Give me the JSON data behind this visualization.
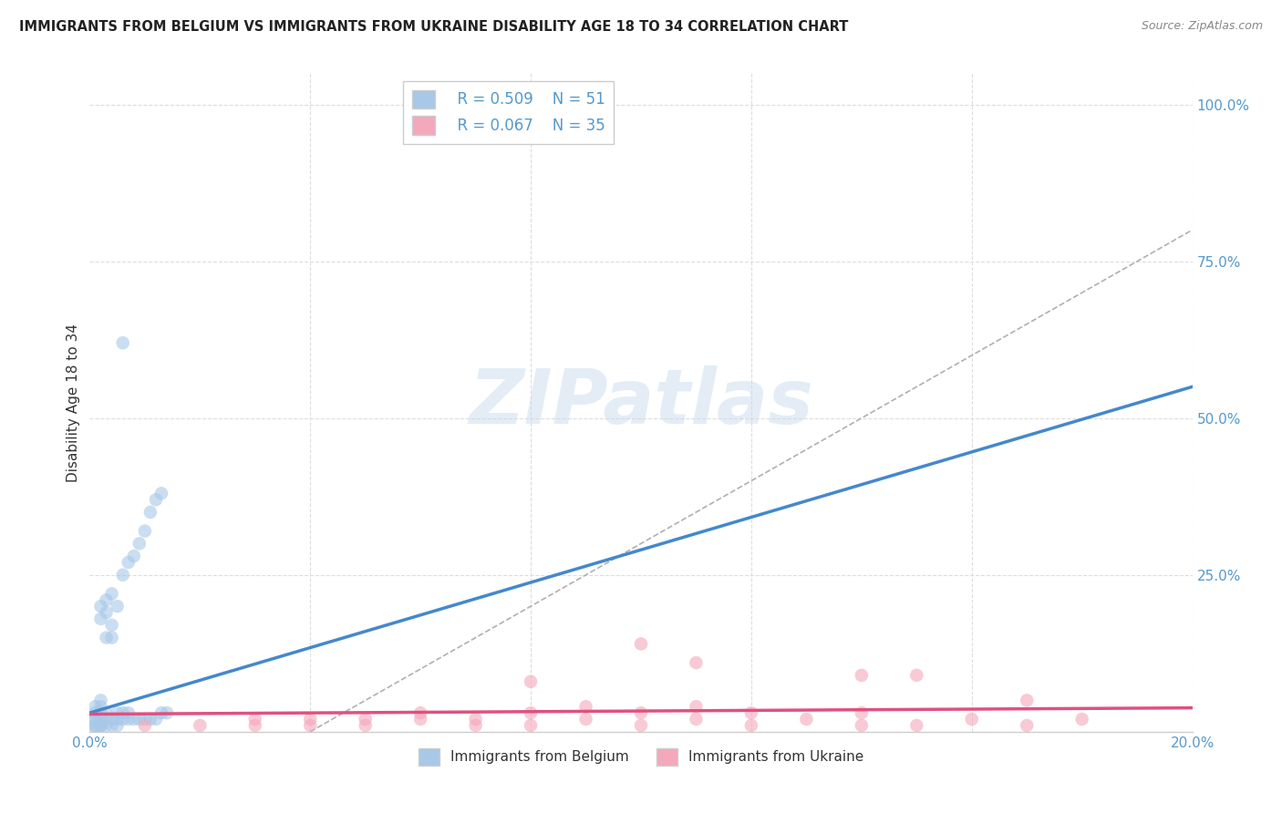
{
  "title": "IMMIGRANTS FROM BELGIUM VS IMMIGRANTS FROM UKRAINE DISABILITY AGE 18 TO 34 CORRELATION CHART",
  "source": "Source: ZipAtlas.com",
  "ylabel": "Disability Age 18 to 34",
  "xlim": [
    0.0,
    0.2
  ],
  "ylim": [
    0.0,
    1.05
  ],
  "y_ticks": [
    0.0,
    0.25,
    0.5,
    0.75,
    1.0
  ],
  "x_ticks": [
    0.0,
    0.04,
    0.08,
    0.12,
    0.16,
    0.2
  ],
  "belgium_R": 0.509,
  "belgium_N": 51,
  "ukraine_R": 0.067,
  "ukraine_N": 35,
  "belgium_color": "#a8c8e8",
  "ukraine_color": "#f4a8bc",
  "belgium_line_color": "#4488cc",
  "ukraine_line_color": "#e05080",
  "dashed_line_color": "#b0b0b0",
  "background_color": "#ffffff",
  "grid_color": "#dddddd",
  "belgium_scatter": {
    "x": [
      0.001,
      0.001,
      0.001,
      0.001,
      0.001,
      0.001,
      0.002,
      0.002,
      0.002,
      0.002,
      0.002,
      0.002,
      0.002,
      0.002,
      0.003,
      0.003,
      0.003,
      0.003,
      0.003,
      0.003,
      0.004,
      0.004,
      0.004,
      0.004,
      0.004,
      0.005,
      0.005,
      0.005,
      0.005,
      0.006,
      0.006,
      0.006,
      0.007,
      0.007,
      0.007,
      0.008,
      0.008,
      0.009,
      0.009,
      0.01,
      0.01,
      0.011,
      0.011,
      0.012,
      0.012,
      0.013,
      0.013,
      0.014,
      0.001,
      0.006,
      0.002
    ],
    "y": [
      0.01,
      0.01,
      0.02,
      0.02,
      0.03,
      0.04,
      0.01,
      0.01,
      0.02,
      0.03,
      0.04,
      0.05,
      0.18,
      0.2,
      0.01,
      0.02,
      0.03,
      0.15,
      0.19,
      0.21,
      0.01,
      0.02,
      0.15,
      0.17,
      0.22,
      0.01,
      0.02,
      0.03,
      0.2,
      0.02,
      0.03,
      0.25,
      0.02,
      0.03,
      0.27,
      0.02,
      0.28,
      0.02,
      0.3,
      0.02,
      0.32,
      0.02,
      0.35,
      0.02,
      0.37,
      0.03,
      0.38,
      0.03,
      0.005,
      0.62,
      0.01
    ]
  },
  "ukraine_scatter": {
    "x": [
      0.01,
      0.02,
      0.03,
      0.03,
      0.04,
      0.04,
      0.05,
      0.05,
      0.06,
      0.06,
      0.07,
      0.07,
      0.08,
      0.08,
      0.09,
      0.09,
      0.1,
      0.1,
      0.11,
      0.11,
      0.12,
      0.12,
      0.13,
      0.14,
      0.14,
      0.15,
      0.15,
      0.16,
      0.17,
      0.18,
      0.1,
      0.11,
      0.08,
      0.14,
      0.17
    ],
    "y": [
      0.01,
      0.01,
      0.01,
      0.02,
      0.01,
      0.02,
      0.01,
      0.02,
      0.02,
      0.03,
      0.01,
      0.02,
      0.01,
      0.03,
      0.02,
      0.04,
      0.01,
      0.03,
      0.02,
      0.04,
      0.01,
      0.03,
      0.02,
      0.01,
      0.03,
      0.01,
      0.09,
      0.02,
      0.01,
      0.02,
      0.14,
      0.11,
      0.08,
      0.09,
      0.05
    ]
  },
  "belgium_line": {
    "x0": 0.0,
    "y0": 0.03,
    "x1": 0.2,
    "y1": 0.55
  },
  "ukraine_line": {
    "x0": 0.0,
    "y0": 0.028,
    "x1": 0.2,
    "y1": 0.038
  },
  "dash_line": {
    "x0": 0.04,
    "y0": 0.0,
    "x1": 0.2,
    "y1": 0.8
  }
}
